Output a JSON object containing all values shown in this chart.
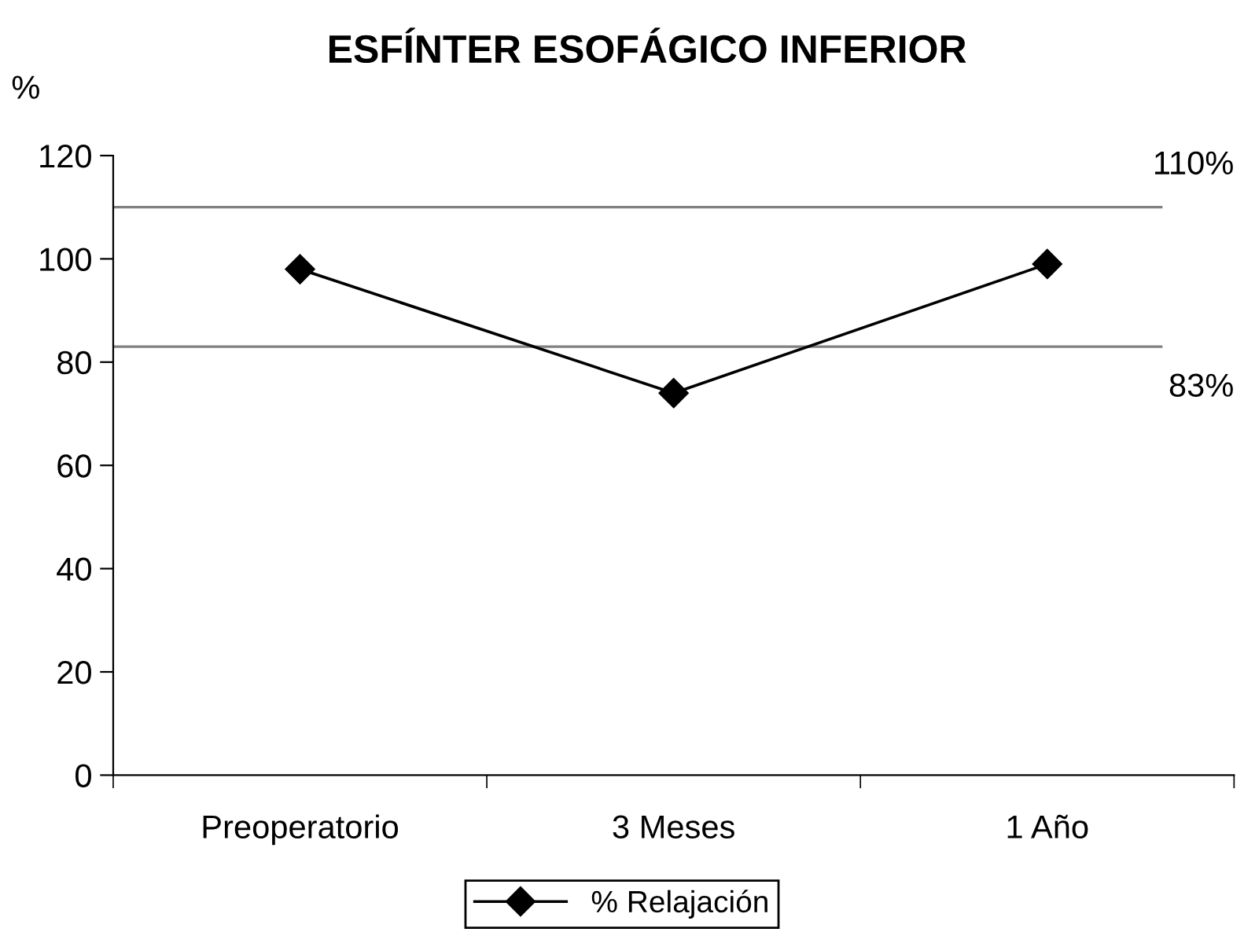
{
  "chart_data": {
    "type": "line",
    "title": "ESFÍNTER ESOFÁGICO INFERIOR",
    "ylabel": "%",
    "categories": [
      "Preoperatorio",
      "3 Meses",
      "1 Año"
    ],
    "series": [
      {
        "name": "% Relajación",
        "color": "#000000",
        "values": [
          98,
          74,
          99
        ]
      }
    ],
    "ylim": [
      0,
      120
    ],
    "yticks": [
      0,
      20,
      40,
      60,
      80,
      100,
      120
    ],
    "ref_lines": [
      {
        "axis": "y",
        "value": 110,
        "label": "110%",
        "color": "#808080"
      },
      {
        "axis": "y",
        "value": 83,
        "label": "83%",
        "color": "#808080"
      }
    ],
    "marker": "diamond",
    "line_style": "solid",
    "legend": "bottom",
    "grid": false
  }
}
